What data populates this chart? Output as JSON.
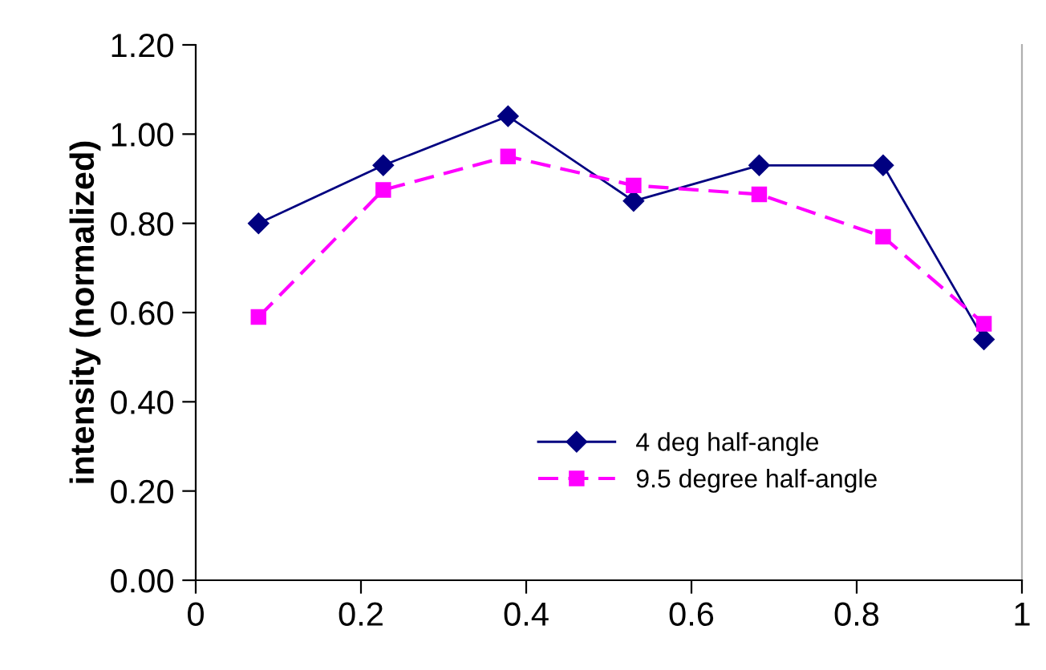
{
  "chart_data": {
    "type": "line",
    "ylabel": "intensity (normalized)",
    "x": [
      0.076,
      0.227,
      0.378,
      0.53,
      0.682,
      0.832,
      0.954
    ],
    "series": [
      {
        "name": "4 deg half-angle",
        "color": "#000080",
        "marker": "diamond",
        "line_style": "solid",
        "values": [
          0.8,
          0.93,
          1.04,
          0.85,
          0.93,
          0.93,
          0.54
        ]
      },
      {
        "name": "9.5 degree half-angle",
        "color": "#ff00ff",
        "marker": "square",
        "line_style": "dashed",
        "values": [
          0.59,
          0.875,
          0.95,
          0.885,
          0.865,
          0.77,
          0.575
        ]
      }
    ],
    "xlim": [
      0,
      1
    ],
    "xticks": [
      0,
      0.2,
      0.4,
      0.6,
      0.8,
      1
    ],
    "ylim": [
      0,
      1.2
    ],
    "yticks": [
      {
        "value": 0,
        "label": "0.00"
      },
      {
        "value": 0.2,
        "label": "0.20"
      },
      {
        "value": 0.4,
        "label": "0.40"
      },
      {
        "value": 0.6,
        "label": "0.60"
      },
      {
        "value": 0.8,
        "label": "0.80"
      },
      {
        "value": 1.0,
        "label": "1.00"
      },
      {
        "value": 1.2,
        "label": "1.20"
      }
    ],
    "grid": false,
    "legend": "bottom"
  }
}
